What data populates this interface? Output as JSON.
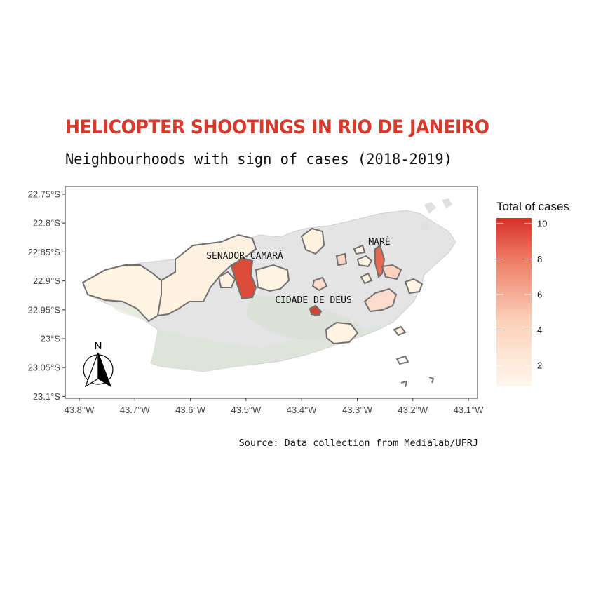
{
  "title": "HELICOPTER SHOOTINGS IN RIO DE JANEIRO",
  "subtitle": "Neighbourhoods with sign of cases (2018-2019)",
  "caption": "Source: Data collection from Medialab/UFRJ",
  "legend": {
    "title": "Total of cases",
    "ticks": [
      "2",
      "4",
      "6",
      "8",
      "10"
    ],
    "color_low": "#fff7ec",
    "color_high": "#d73027"
  },
  "axes": {
    "y_ticks": [
      "22.75°S",
      "22.8°S",
      "22.85°S",
      "22.9°S",
      "22.95°S",
      "23°S",
      "23.05°S",
      "23.1°S"
    ],
    "x_ticks": [
      "43.8°W",
      "43.7°W",
      "43.6°W",
      "43.5°W",
      "43.4°W",
      "43.3°W",
      "43.2°W",
      "43.1°W"
    ]
  },
  "labels": {
    "senador_camara": "SENADOR CAMARÁ",
    "cidade_de_deus": "CIDADE DE DEUS",
    "mare": "MARÉ"
  },
  "north_arrow": {
    "label": "N"
  },
  "colors": {
    "title": "#d73a2a",
    "city_fill": "#e6e6e6",
    "vegetation": "#c9d6c2",
    "outline": "#6e6e6e"
  }
}
